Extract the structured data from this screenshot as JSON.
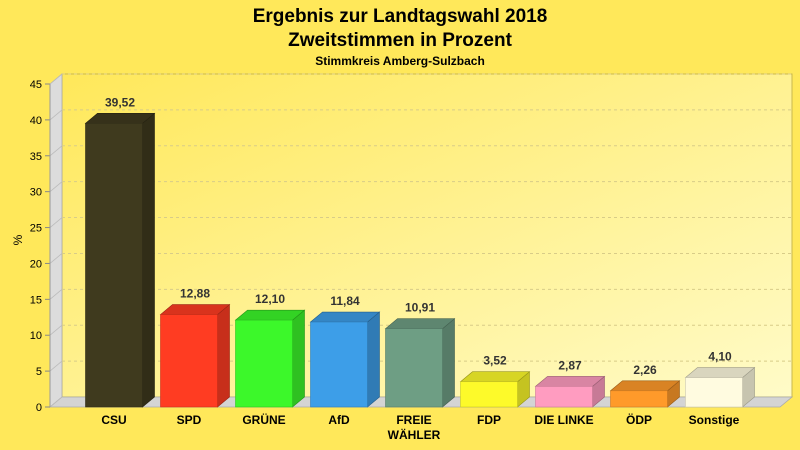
{
  "chart_data": {
    "type": "bar",
    "title": "Ergebnis zur Landtagswahl 2018",
    "subtitle": "Zweitstimmen in Prozent",
    "subtitle2": "Stimmkreis Amberg-Sulzbach",
    "xlabel": "",
    "ylabel": "%",
    "ylim": [
      0,
      45
    ],
    "yticks": [
      0,
      5,
      10,
      15,
      20,
      25,
      30,
      35,
      40,
      45
    ],
    "grid": true,
    "legend": "none",
    "style": "3d",
    "categories": [
      "CSU",
      "SPD",
      "GRÜNE",
      "AfD",
      "FREIE WÄHLER",
      "FDP",
      "DIE LINKE",
      "ÖDP",
      "Sonstige"
    ],
    "values": [
      39.52,
      12.88,
      12.1,
      11.84,
      10.91,
      3.52,
      2.87,
      2.26,
      4.1
    ],
    "value_labels": [
      "39,52",
      "12,88",
      "12,10",
      "11,84",
      "10,91",
      "3,52",
      "2,87",
      "2,26",
      "4,10"
    ],
    "colors": [
      "#3f3a1e",
      "#ff3c22",
      "#3cf82a",
      "#3d9ee8",
      "#6e9e84",
      "#fdfa2a",
      "#ff9cc0",
      "#ff9a2a",
      "#fffbe0"
    ],
    "background_color": "#ffe85a"
  }
}
